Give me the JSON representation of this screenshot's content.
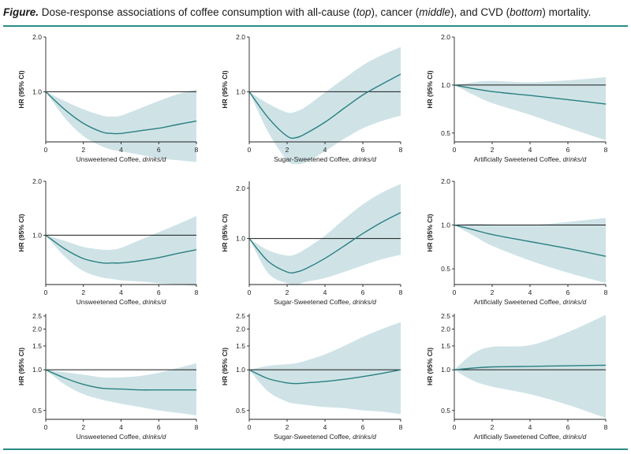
{
  "caption": {
    "prefix": "Figure.",
    "text1": " Dose-response associations of coffee consumption with all-cause (",
    "top": "top",
    "text2": "), cancer (",
    "middle": "middle",
    "text3": "), and CVD (",
    "bottom": "bottom",
    "text4": ") mortality."
  },
  "colors": {
    "line": "#2a7f80",
    "band": "#cfe3e7",
    "reference": "#1a1a1a",
    "rule": "#2a8c86"
  },
  "chart_data": [
    {
      "type": "line",
      "row": 0,
      "col": 0,
      "xlabel": "Unsweetened Coffee, ",
      "xlabel_italic": "drinks/d",
      "ylabel": "HR (95% CI)",
      "xticks": [
        0,
        2,
        4,
        6,
        8
      ],
      "xlim": [
        0,
        8
      ],
      "yticks": [
        1.0,
        2.0
      ],
      "ytick_labels": [
        "1.0",
        "2.0"
      ],
      "ylim": [
        0.53,
        2.0
      ],
      "reference_line": 1.0,
      "x": [
        0,
        1,
        2,
        3,
        3.5,
        4,
        5,
        6,
        7,
        8
      ],
      "hr": [
        1.0,
        0.8,
        0.67,
        0.6,
        0.59,
        0.59,
        0.61,
        0.63,
        0.66,
        0.69
      ],
      "lower": [
        1.0,
        0.72,
        0.57,
        0.5,
        0.48,
        0.47,
        0.45,
        0.43,
        0.42,
        0.41
      ],
      "upper": [
        1.0,
        0.89,
        0.8,
        0.74,
        0.73,
        0.74,
        0.81,
        0.89,
        0.97,
        1.03
      ]
    },
    {
      "type": "line",
      "row": 0,
      "col": 1,
      "xlabel": "Sugar-Sweetened Coffee, ",
      "xlabel_italic": "drinks/d",
      "ylabel": "HR (95% CI)",
      "xticks": [
        0,
        2,
        4,
        6,
        8
      ],
      "xlim": [
        0,
        8
      ],
      "yticks": [
        1.0,
        2.0
      ],
      "ytick_labels": [
        "1.0",
        "2.0"
      ],
      "ylim": [
        0.53,
        2.0
      ],
      "reference_line": 1.0,
      "x": [
        0,
        1,
        2,
        2.5,
        3,
        4,
        5,
        6,
        7,
        8
      ],
      "hr": [
        1.0,
        0.72,
        0.57,
        0.56,
        0.59,
        0.68,
        0.81,
        0.96,
        1.1,
        1.25
      ],
      "lower": [
        1.0,
        0.6,
        0.42,
        0.4,
        0.41,
        0.47,
        0.55,
        0.63,
        0.69,
        0.74
      ],
      "upper": [
        1.0,
        0.86,
        0.77,
        0.78,
        0.83,
        0.99,
        1.18,
        1.4,
        1.59,
        1.76
      ]
    },
    {
      "type": "line",
      "row": 0,
      "col": 2,
      "xlabel": "Artificially Sweetened Coffee, ",
      "xlabel_italic": "drinks/d",
      "ylabel": "HR (95% CI)",
      "xticks": [
        0,
        2,
        4,
        6,
        8
      ],
      "xlim": [
        0,
        8
      ],
      "yticks": [
        0.5,
        1.0,
        2.0
      ],
      "ytick_labels": [
        "0.5",
        "1.0",
        "2.0"
      ],
      "ylim": [
        0.44,
        2.0
      ],
      "reference_line": 1.0,
      "x": [
        0,
        1,
        2,
        4,
        6,
        8
      ],
      "hr": [
        1.0,
        0.95,
        0.91,
        0.86,
        0.81,
        0.76
      ],
      "lower": [
        1.0,
        0.87,
        0.77,
        0.65,
        0.54,
        0.45
      ],
      "upper": [
        1.0,
        1.04,
        1.06,
        1.04,
        1.07,
        1.12
      ]
    },
    {
      "type": "line",
      "row": 1,
      "col": 0,
      "xlabel": "Unsweetened Coffee, ",
      "xlabel_italic": "drinks/d",
      "ylabel": "HR (95% CI)",
      "xticks": [
        0,
        2,
        4,
        6,
        8
      ],
      "xlim": [
        0,
        8
      ],
      "yticks": [
        1.0,
        2.0
      ],
      "ytick_labels": [
        "1.0",
        "2.0"
      ],
      "ylim": [
        0.53,
        2.0
      ],
      "reference_line": 1.0,
      "x": [
        0,
        1,
        2,
        3,
        3.5,
        4,
        5,
        6,
        7,
        8
      ],
      "hr": [
        1.0,
        0.84,
        0.74,
        0.7,
        0.7,
        0.7,
        0.72,
        0.75,
        0.79,
        0.83
      ],
      "lower": [
        1.0,
        0.76,
        0.63,
        0.58,
        0.57,
        0.56,
        0.55,
        0.54,
        0.53,
        0.52
      ],
      "upper": [
        1.0,
        0.93,
        0.86,
        0.83,
        0.83,
        0.85,
        0.94,
        1.04,
        1.15,
        1.28
      ]
    },
    {
      "type": "line",
      "row": 1,
      "col": 1,
      "xlabel": "Sugar-Sweetened Coffee, ",
      "xlabel_italic": "drinks/d",
      "ylabel": "HR (95% CI)",
      "xticks": [
        0,
        2,
        4,
        6,
        8
      ],
      "xlim": [
        0,
        8
      ],
      "yticks": [
        1.0,
        2.0
      ],
      "ytick_labels": [
        "1.0",
        "2.0"
      ],
      "ylim": [
        0.53,
        2.2
      ],
      "reference_line": 1.0,
      "x": [
        0,
        1,
        2,
        2.5,
        3,
        4,
        5,
        6,
        7,
        8
      ],
      "hr": [
        1.0,
        0.73,
        0.63,
        0.63,
        0.66,
        0.76,
        0.9,
        1.07,
        1.25,
        1.43
      ],
      "lower": [
        1.0,
        0.62,
        0.54,
        0.53,
        0.55,
        0.58,
        0.63,
        0.69,
        0.75,
        0.8
      ],
      "upper": [
        1.0,
        0.85,
        0.79,
        0.81,
        0.87,
        1.04,
        1.3,
        1.6,
        1.88,
        2.12
      ]
    },
    {
      "type": "line",
      "row": 1,
      "col": 2,
      "xlabel": "Artificially Sweetened Coffee, ",
      "xlabel_italic": "drinks/d",
      "ylabel": "HR (95% CI)",
      "xticks": [
        0,
        2,
        4,
        6,
        8
      ],
      "xlim": [
        0,
        8
      ],
      "yticks": [
        0.5,
        1.0,
        2.0
      ],
      "ytick_labels": [
        "0.5",
        "1.0",
        "2.0"
      ],
      "ylim": [
        0.39,
        2.0
      ],
      "reference_line": 1.0,
      "x": [
        0,
        1,
        2,
        4,
        6,
        8
      ],
      "hr": [
        1.0,
        0.93,
        0.86,
        0.77,
        0.69,
        0.61
      ],
      "lower": [
        1.0,
        0.85,
        0.72,
        0.57,
        0.47,
        0.4
      ],
      "upper": [
        1.0,
        1.02,
        1.01,
        1.0,
        1.05,
        1.12
      ]
    },
    {
      "type": "line",
      "row": 2,
      "col": 0,
      "xlabel": "Unsweetened Coffee, ",
      "xlabel_italic": "drinks/d",
      "ylabel": "HR (95% CI)",
      "xticks": [
        0,
        2,
        4,
        6,
        8
      ],
      "xlim": [
        0,
        8
      ],
      "yticks": [
        0.5,
        1.0,
        1.5,
        2.0,
        2.5
      ],
      "ytick_labels": [
        "0.5",
        "1.0",
        "1.5",
        "2.0",
        "2.5"
      ],
      "ylim": [
        0.43,
        2.6
      ],
      "reference_line": 1.0,
      "x": [
        0,
        1,
        2,
        3,
        4,
        5,
        6,
        7,
        8
      ],
      "hr": [
        1.0,
        0.87,
        0.78,
        0.73,
        0.72,
        0.71,
        0.71,
        0.71,
        0.71
      ],
      "lower": [
        1.0,
        0.78,
        0.66,
        0.6,
        0.56,
        0.53,
        0.5,
        0.48,
        0.46
      ],
      "upper": [
        1.0,
        0.96,
        0.92,
        0.88,
        0.88,
        0.9,
        0.95,
        1.03,
        1.12
      ]
    },
    {
      "type": "line",
      "row": 2,
      "col": 1,
      "xlabel": "Sugar-Sweetened Coffee, ",
      "xlabel_italic": "drinks/d",
      "ylabel": "HR (95% CI)",
      "xticks": [
        0,
        2,
        4,
        6,
        8
      ],
      "xlim": [
        0,
        8
      ],
      "yticks": [
        0.5,
        1.0,
        1.5,
        2.0,
        2.5
      ],
      "ytick_labels": [
        "0.5",
        "1.0",
        "1.5",
        "2.0",
        "2.5"
      ],
      "ylim": [
        0.43,
        2.6
      ],
      "reference_line": 1.0,
      "x": [
        0,
        1,
        2,
        2.5,
        3,
        4,
        5,
        6,
        7,
        8
      ],
      "hr": [
        1.0,
        0.86,
        0.8,
        0.79,
        0.8,
        0.82,
        0.85,
        0.89,
        0.94,
        1.0
      ],
      "lower": [
        1.0,
        0.69,
        0.58,
        0.56,
        0.55,
        0.53,
        0.52,
        0.5,
        0.49,
        0.47
      ],
      "upper": [
        1.0,
        1.07,
        1.1,
        1.12,
        1.17,
        1.3,
        1.5,
        1.75,
        2.0,
        2.25
      ]
    },
    {
      "type": "line",
      "row": 2,
      "col": 2,
      "xlabel": "Artificially Sweetened Coffee, ",
      "xlabel_italic": "drinks/d",
      "ylabel": "HR (95% CI)",
      "xticks": [
        0,
        2,
        4,
        6,
        8
      ],
      "xlim": [
        0,
        8
      ],
      "yticks": [
        0.5,
        1.0,
        1.5,
        2.0,
        2.5
      ],
      "ytick_labels": [
        "0.5",
        "1.0",
        "1.5",
        "2.0",
        "2.5"
      ],
      "ylim": [
        0.43,
        2.6
      ],
      "reference_line": 1.0,
      "x": [
        0,
        1,
        2,
        4,
        6,
        8
      ],
      "hr": [
        1.0,
        1.03,
        1.05,
        1.06,
        1.07,
        1.08
      ],
      "lower": [
        1.0,
        0.83,
        0.75,
        0.66,
        0.55,
        0.44
      ],
      "upper": [
        1.0,
        1.32,
        1.48,
        1.52,
        1.9,
        2.55
      ]
    }
  ]
}
